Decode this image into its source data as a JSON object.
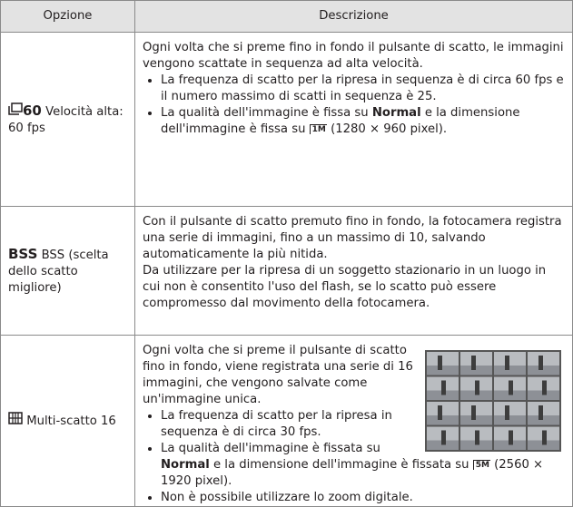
{
  "table": {
    "header": [
      "Opzione",
      "Descrizione"
    ],
    "rows": [
      {
        "icon": "60",
        "option": "Velocità alta: 60 fps",
        "intro": "Ogni volta che si preme fino in fondo il pulsante di scatto, le immagini vengono scattate in sequenza ad alta velocità.",
        "bullet_1": "La frequenza di scatto per la ripresa in sequenza è di circa 60 fps e il numero massimo di scatti in sequenza è 25.",
        "bullet_2": {
          "before": "La qualità dell'immagine è fissa su",
          "bold": "Normal",
          "after": "e la dimensione dell'immagine è fissa su",
          "size_icon": "1M",
          "end": "(1280 × 960 pixel)."
        }
      },
      {
        "icon": "BSS",
        "option": "BSS (scelta dello scatto migliore)",
        "intro": "Con il pulsante di scatto premuto fino in fondo, la fotocamera registra una serie di immagini, fino a un massimo di 10, salvando automaticamente la più nitida.",
        "note": "Da utilizzare per la ripresa di un soggetto stazionario in un luogo in cui non è consentito l'uso del flash, se lo scatto può essere compromesso dal movimento della fotocamera."
      },
      {
        "option": "Multi-scatto 16",
        "intro": "Ogni volta che si preme il pulsante di scatto fino in fondo, viene registrata una serie di 16 immagini, che vengono salvate come un'immagine unica.",
        "bullet_1": "La frequenza di scatto per la ripresa in sequenza è di circa 30 fps.",
        "bullet_2": {
          "before": "La qualità dell'immagine è fissata su",
          "bold": "Normal",
          "after": "e la dimensione dell'immagine è fissata su",
          "size_icon": "5M",
          "end": "(2560 × 1920 pixel)."
        },
        "bullet_3": "Non è possibile utilizzare lo zoom digitale."
      }
    ]
  }
}
